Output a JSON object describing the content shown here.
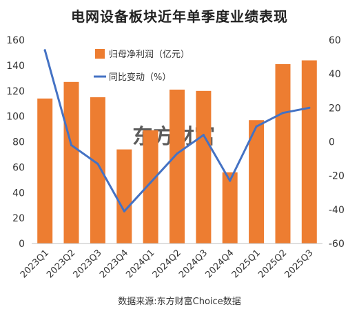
{
  "chart_data": {
    "type": "bar+line",
    "title": "电网设备板块近年单季度业绩表现",
    "source": "数据来源:东方财富Choice数据",
    "watermark": "东方财富",
    "categories": [
      "2023Q1",
      "2023Q2",
      "2023Q3",
      "2023Q4",
      "2024Q1",
      "2024Q2",
      "2024Q3",
      "2024Q4",
      "2025Q1",
      "2025Q2",
      "2025Q3"
    ],
    "series": [
      {
        "name": "归母净利润（亿元）",
        "type": "bar",
        "axis": "left",
        "color": "#ED7D31",
        "values": [
          114,
          127,
          115,
          74,
          89,
          121,
          120,
          56,
          97,
          141,
          144
        ]
      },
      {
        "name": "同比变动（%）",
        "type": "line",
        "axis": "right",
        "color": "#4472C4",
        "values": [
          54,
          -2,
          -13,
          -41,
          -24,
          -7,
          4,
          -23,
          9,
          17,
          20
        ]
      }
    ],
    "y_left": {
      "min": 0,
      "max": 160,
      "step": 20,
      "ticks": [
        "0",
        "20",
        "40",
        "60",
        "80",
        "100",
        "120",
        "140",
        "160"
      ]
    },
    "y_right": {
      "min": -60,
      "max": 60,
      "step": 20,
      "ticks": [
        "-60",
        "-40",
        "-20",
        "0",
        "20",
        "40",
        "60"
      ]
    },
    "legend_position": "top-center",
    "grid": false
  }
}
